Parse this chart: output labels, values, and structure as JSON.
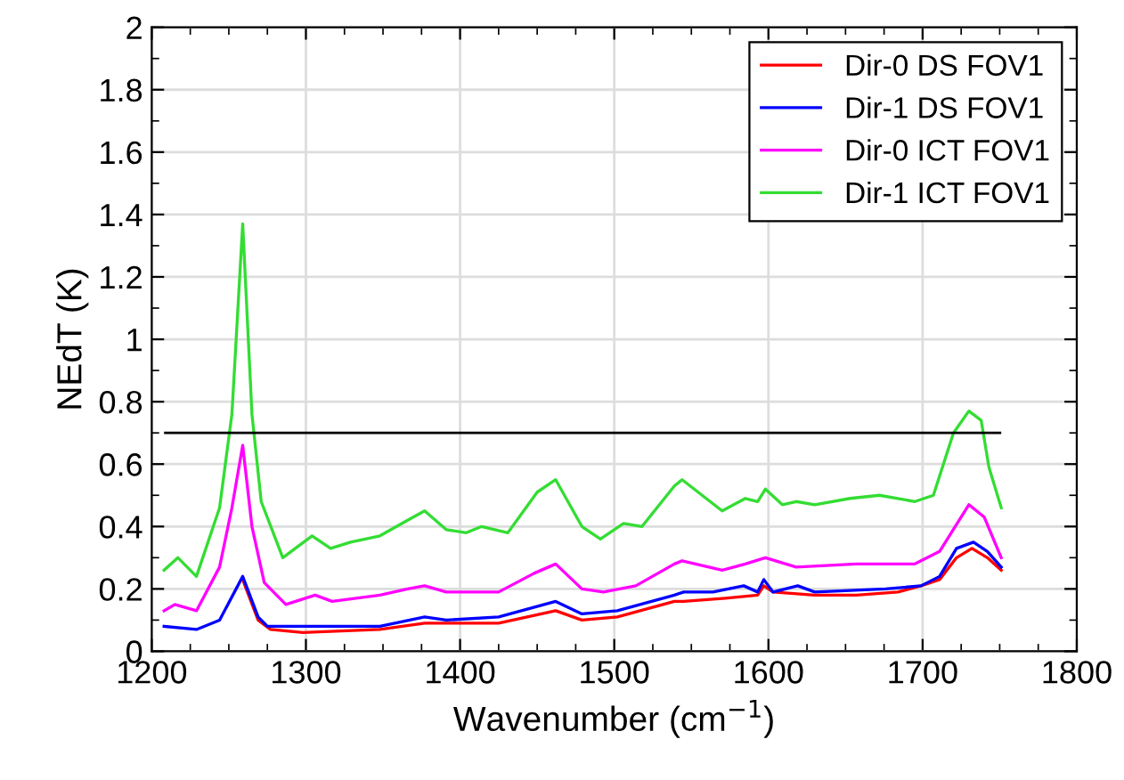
{
  "chart_data": {
    "type": "line",
    "xlabel": "Wavenumber (cm$^{−1}$)",
    "ylabel": "NEdT (K)",
    "xlim": [
      1200,
      1800
    ],
    "xticks": [
      1200,
      1300,
      1400,
      1500,
      1600,
      1700,
      1800
    ],
    "ylim": [
      0,
      2
    ],
    "yticks": [
      0,
      0.2,
      0.4,
      0.6,
      0.8,
      1,
      1.2,
      1.4,
      1.6,
      1.8,
      2
    ],
    "grid": true,
    "legend": "top right",
    "marker": "none",
    "line_style": "solid",
    "ref_lines": [
      {
        "axis": "y",
        "value": 0.7,
        "color": "#000000"
      }
    ],
    "series": [
      {
        "name": "Dir-0 DS FOV1",
        "color": "#ff0000",
        "x": [
          1259,
          1269,
          1277,
          1298,
          1348,
          1377,
          1425,
          1462,
          1479,
          1502,
          1539,
          1545,
          1572,
          1593,
          1597,
          1603,
          1630,
          1657,
          1684,
          1699,
          1711,
          1722,
          1732,
          1742,
          1751
        ],
        "values": [
          0.23,
          0.1,
          0.07,
          0.06,
          0.07,
          0.09,
          0.09,
          0.13,
          0.1,
          0.11,
          0.16,
          0.16,
          0.17,
          0.18,
          0.21,
          0.19,
          0.18,
          0.18,
          0.19,
          0.21,
          0.23,
          0.3,
          0.33,
          0.3,
          0.26
        ]
      },
      {
        "name": "Dir-1 DS FOV1",
        "color": "#0000ff",
        "x": [
          1208,
          1229,
          1244,
          1259,
          1269,
          1275,
          1310,
          1348,
          1377,
          1391,
          1425,
          1462,
          1479,
          1502,
          1539,
          1545,
          1564,
          1584,
          1593,
          1597,
          1603,
          1619,
          1630,
          1676,
          1699,
          1711,
          1722,
          1733,
          1742,
          1751
        ],
        "values": [
          0.08,
          0.07,
          0.1,
          0.24,
          0.11,
          0.08,
          0.08,
          0.08,
          0.11,
          0.1,
          0.11,
          0.16,
          0.12,
          0.13,
          0.18,
          0.19,
          0.19,
          0.21,
          0.19,
          0.23,
          0.19,
          0.21,
          0.19,
          0.2,
          0.21,
          0.24,
          0.33,
          0.35,
          0.32,
          0.27
        ]
      },
      {
        "name": "Dir-0 ICT FOV1",
        "color": "#ff00ff",
        "x": [
          1208,
          1215,
          1229,
          1244,
          1252,
          1259,
          1265,
          1273,
          1287,
          1306,
          1317,
          1348,
          1366,
          1377,
          1391,
          1425,
          1448,
          1462,
          1479,
          1493,
          1514,
          1539,
          1544,
          1570,
          1585,
          1598,
          1618,
          1657,
          1695,
          1711,
          1730,
          1740,
          1751
        ],
        "values": [
          0.13,
          0.15,
          0.13,
          0.27,
          0.46,
          0.66,
          0.4,
          0.22,
          0.15,
          0.18,
          0.16,
          0.18,
          0.2,
          0.21,
          0.19,
          0.19,
          0.25,
          0.28,
          0.2,
          0.19,
          0.21,
          0.28,
          0.29,
          0.26,
          0.28,
          0.3,
          0.27,
          0.28,
          0.28,
          0.32,
          0.47,
          0.43,
          0.3
        ]
      },
      {
        "name": "Dir-1 ICT FOV1",
        "color": "#33dd33",
        "x": [
          1208,
          1217,
          1229,
          1244,
          1252,
          1259,
          1265,
          1271,
          1285,
          1304,
          1316,
          1329,
          1348,
          1366,
          1377,
          1391,
          1404,
          1414,
          1431,
          1450,
          1462,
          1479,
          1491,
          1506,
          1518,
          1539,
          1544,
          1557,
          1570,
          1585,
          1593,
          1598,
          1609,
          1618,
          1630,
          1653,
          1672,
          1695,
          1707,
          1720,
          1730,
          1738,
          1743,
          1751
        ],
        "values": [
          0.26,
          0.3,
          0.24,
          0.46,
          0.76,
          1.37,
          0.76,
          0.48,
          0.3,
          0.37,
          0.33,
          0.35,
          0.37,
          0.42,
          0.45,
          0.39,
          0.38,
          0.4,
          0.38,
          0.51,
          0.55,
          0.4,
          0.36,
          0.41,
          0.4,
          0.53,
          0.55,
          0.5,
          0.45,
          0.49,
          0.48,
          0.52,
          0.47,
          0.48,
          0.47,
          0.49,
          0.5,
          0.48,
          0.5,
          0.7,
          0.77,
          0.74,
          0.59,
          0.46
        ]
      }
    ]
  }
}
